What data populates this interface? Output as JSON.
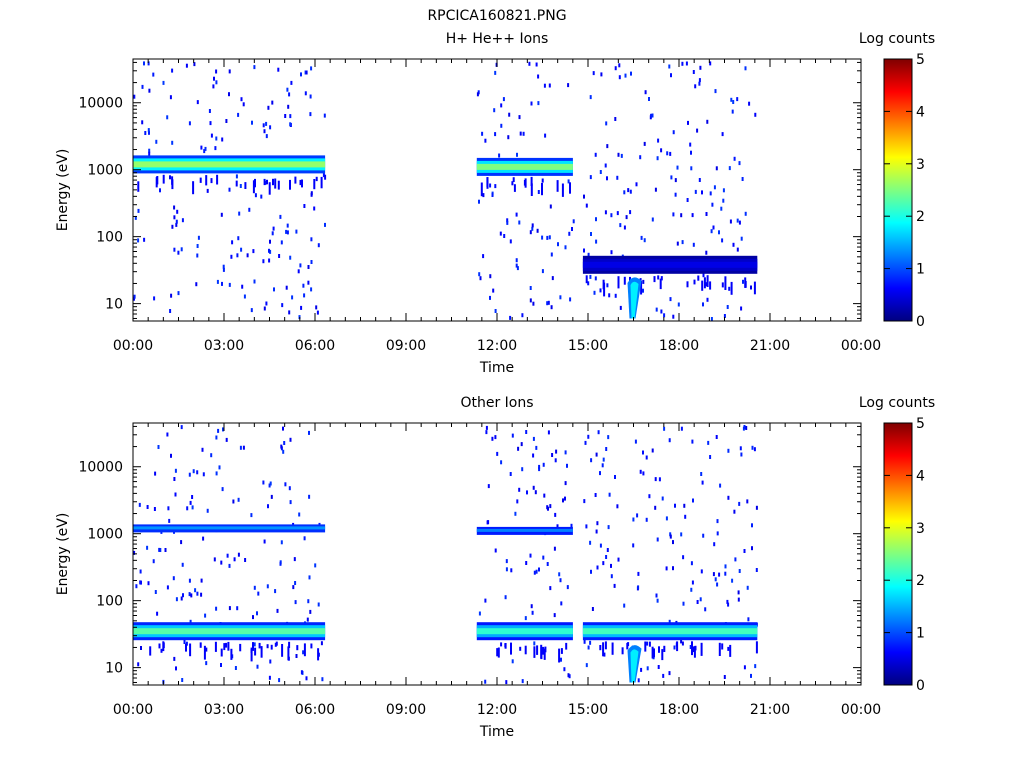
{
  "figure_title": "RPCICA160821.PNG",
  "chart_data": [
    {
      "type": "heatmap",
      "title": "H+ He++ Ions",
      "xlabel": "Time",
      "ylabel": "Energy (eV)",
      "yscale": "log",
      "ylim": [
        5.5,
        45000
      ],
      "xlim_hours": [
        0,
        24
      ],
      "x_ticks": [
        "00:00",
        "03:00",
        "06:00",
        "09:00",
        "12:00",
        "15:00",
        "18:00",
        "21:00",
        "00:00"
      ],
      "y_ticks": [
        {
          "label": "10",
          "value": 10
        },
        {
          "label": "100",
          "value": 100
        },
        {
          "label": "1000",
          "value": 1000
        },
        {
          "label": "10000",
          "value": 10000
        }
      ],
      "colorbar": {
        "label": "Log counts",
        "range": [
          0,
          5
        ],
        "ticks": [
          "0",
          "1",
          "2",
          "3",
          "4",
          "5"
        ]
      },
      "grid": false,
      "data_intervals": [
        {
          "start": "00:00",
          "end": "06:20",
          "band_energy_ev": 1200,
          "band_log_counts": 2.6
        },
        {
          "start": "11:20",
          "end": "14:30",
          "band_energy_ev": 1100,
          "band_log_counts": 2.5
        },
        {
          "start": "14:50",
          "end": "20:35",
          "band_energy_ev": 38,
          "band_log_counts": 0.5
        }
      ],
      "features": [
        {
          "time": "16:30",
          "energy_ev": [
            6,
            25
          ],
          "log_counts": 1.8
        }
      ]
    },
    {
      "type": "heatmap",
      "title": "Other Ions",
      "xlabel": "Time",
      "ylabel": "Energy (eV)",
      "yscale": "log",
      "ylim": [
        5.5,
        45000
      ],
      "xlim_hours": [
        0,
        24
      ],
      "x_ticks": [
        "00:00",
        "03:00",
        "06:00",
        "09:00",
        "12:00",
        "15:00",
        "18:00",
        "21:00",
        "00:00"
      ],
      "y_ticks": [
        {
          "label": "10",
          "value": 10
        },
        {
          "label": "100",
          "value": 100
        },
        {
          "label": "1000",
          "value": 1000
        },
        {
          "label": "10000",
          "value": 10000
        }
      ],
      "colorbar": {
        "label": "Log counts",
        "range": [
          0,
          5
        ],
        "ticks": [
          "0",
          "1",
          "2",
          "3",
          "4",
          "5"
        ]
      },
      "grid": false,
      "data_intervals": [
        {
          "start": "00:00",
          "end": "06:20",
          "band_energy_ev": 35,
          "band_log_counts": 2.3,
          "secondary_band_ev": 1200,
          "secondary_log_counts": 0.6
        },
        {
          "start": "11:20",
          "end": "14:30",
          "band_energy_ev": 35,
          "band_log_counts": 2.1,
          "secondary_band_ev": 1100,
          "secondary_log_counts": 0.5
        },
        {
          "start": "14:50",
          "end": "20:35",
          "band_energy_ev": 35,
          "band_log_counts": 2.2
        }
      ],
      "features": [
        {
          "time": "16:30",
          "energy_ev": [
            6,
            22
          ],
          "log_counts": 1.8
        }
      ]
    }
  ]
}
